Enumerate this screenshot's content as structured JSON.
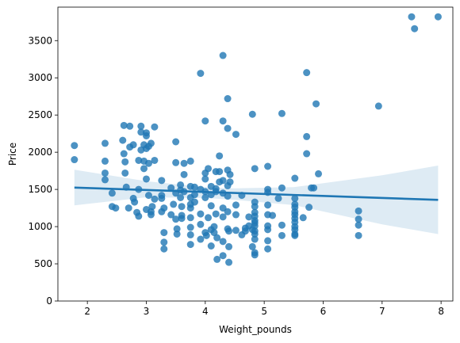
{
  "chart_data": {
    "type": "scatter",
    "title": "",
    "xlabel": "Weight_pounds",
    "ylabel": "Price",
    "xlim": [
      1.5,
      8.2
    ],
    "ylim": [
      0,
      3950
    ],
    "xticks": [
      2,
      3,
      4,
      5,
      6,
      7,
      8
    ],
    "yticks": [
      0,
      500,
      1000,
      1500,
      2000,
      2500,
      3000,
      3500
    ],
    "grid": false,
    "legend": "none",
    "colors": {
      "points": "#1f77b4",
      "line": "#1f77b4",
      "band": "#1f77b4"
    },
    "points": [
      [
        1.78,
        2090
      ],
      [
        1.78,
        1900
      ],
      [
        2.3,
        2120
      ],
      [
        2.3,
        1880
      ],
      [
        2.3,
        1720
      ],
      [
        2.3,
        1630
      ],
      [
        2.42,
        1450
      ],
      [
        2.42,
        1270
      ],
      [
        2.48,
        1250
      ],
      [
        2.6,
        2160
      ],
      [
        2.62,
        2360
      ],
      [
        2.62,
        1980
      ],
      [
        2.64,
        1720
      ],
      [
        2.64,
        1870
      ],
      [
        2.66,
        1530
      ],
      [
        2.7,
        1250
      ],
      [
        2.72,
        2070
      ],
      [
        2.72,
        2350
      ],
      [
        2.78,
        2100
      ],
      [
        2.78,
        1380
      ],
      [
        2.8,
        1330
      ],
      [
        2.84,
        1190
      ],
      [
        2.87,
        1140
      ],
      [
        2.87,
        1500
      ],
      [
        2.87,
        1890
      ],
      [
        2.91,
        2030
      ],
      [
        2.91,
        2350
      ],
      [
        2.91,
        2270
      ],
      [
        2.96,
        2100
      ],
      [
        2.96,
        1880
      ],
      [
        2.96,
        1780
      ],
      [
        3.0,
        2050
      ],
      [
        3.0,
        2260
      ],
      [
        3.0,
        2220
      ],
      [
        3.0,
        1640
      ],
      [
        3.0,
        1230
      ],
      [
        3.04,
        2080
      ],
      [
        3.04,
        1850
      ],
      [
        3.04,
        1420
      ],
      [
        3.08,
        2120
      ],
      [
        3.08,
        1200
      ],
      [
        3.08,
        1160
      ],
      [
        3.1,
        1270
      ],
      [
        3.14,
        2340
      ],
      [
        3.14,
        1890
      ],
      [
        3.14,
        1370
      ],
      [
        3.26,
        1620
      ],
      [
        3.26,
        1420
      ],
      [
        3.26,
        1380
      ],
      [
        3.26,
        1200
      ],
      [
        3.3,
        920
      ],
      [
        3.3,
        790
      ],
      [
        3.3,
        700
      ],
      [
        3.3,
        1250
      ],
      [
        3.42,
        1520
      ],
      [
        3.42,
        1160
      ],
      [
        3.46,
        1300
      ],
      [
        3.5,
        2140
      ],
      [
        3.5,
        1860
      ],
      [
        3.5,
        1450
      ],
      [
        3.5,
        1100
      ],
      [
        3.52,
        970
      ],
      [
        3.52,
        900
      ],
      [
        3.58,
        1560
      ],
      [
        3.58,
        1490
      ],
      [
        3.58,
        1390
      ],
      [
        3.6,
        1270
      ],
      [
        3.6,
        1150
      ],
      [
        3.6,
        1110
      ],
      [
        3.64,
        1700
      ],
      [
        3.64,
        1850
      ],
      [
        3.64,
        1470
      ],
      [
        3.75,
        1880
      ],
      [
        3.75,
        1540
      ],
      [
        3.75,
        1390
      ],
      [
        3.75,
        1300
      ],
      [
        3.75,
        1250
      ],
      [
        3.75,
        1120
      ],
      [
        3.75,
        990
      ],
      [
        3.75,
        890
      ],
      [
        3.75,
        760
      ],
      [
        3.82,
        1530
      ],
      [
        3.82,
        1430
      ],
      [
        3.82,
        1330
      ],
      [
        3.92,
        3060
      ],
      [
        3.92,
        1500
      ],
      [
        3.92,
        1170
      ],
      [
        3.92,
        1030
      ],
      [
        3.92,
        830
      ],
      [
        4.0,
        1720
      ],
      [
        4.0,
        1640
      ],
      [
        4.0,
        1470
      ],
      [
        4.0,
        1390
      ],
      [
        4.0,
        2420
      ],
      [
        4.0,
        920
      ],
      [
        4.02,
        880
      ],
      [
        4.05,
        1780
      ],
      [
        4.05,
        1120
      ],
      [
        4.1,
        1540
      ],
      [
        4.1,
        1430
      ],
      [
        4.1,
        1280
      ],
      [
        4.1,
        960
      ],
      [
        4.1,
        740
      ],
      [
        4.15,
        1000
      ],
      [
        4.15,
        920
      ],
      [
        4.18,
        1740
      ],
      [
        4.18,
        1510
      ],
      [
        4.18,
        1470
      ],
      [
        4.18,
        1170
      ],
      [
        4.2,
        560
      ],
      [
        4.2,
        850
      ],
      [
        4.24,
        1950
      ],
      [
        4.24,
        1740
      ],
      [
        4.24,
        1600
      ],
      [
        4.3,
        3300
      ],
      [
        4.3,
        2420
      ],
      [
        4.3,
        1620
      ],
      [
        4.3,
        1450
      ],
      [
        4.3,
        1250
      ],
      [
        4.3,
        1130
      ],
      [
        4.3,
        800
      ],
      [
        4.3,
        610
      ],
      [
        4.38,
        2720
      ],
      [
        4.38,
        2320
      ],
      [
        4.38,
        1760
      ],
      [
        4.38,
        1550
      ],
      [
        4.38,
        1410
      ],
      [
        4.38,
        1200
      ],
      [
        4.38,
        970
      ],
      [
        4.4,
        730
      ],
      [
        4.4,
        520
      ],
      [
        4.4,
        940
      ],
      [
        4.42,
        1600
      ],
      [
        4.42,
        1700
      ],
      [
        4.52,
        2240
      ],
      [
        4.52,
        1290
      ],
      [
        4.52,
        1160
      ],
      [
        4.52,
        950
      ],
      [
        4.62,
        1420
      ],
      [
        4.62,
        890
      ],
      [
        4.68,
        940
      ],
      [
        4.68,
        980
      ],
      [
        4.74,
        1130
      ],
      [
        4.74,
        1010
      ],
      [
        4.8,
        2510
      ],
      [
        4.8,
        960
      ],
      [
        4.8,
        730
      ],
      [
        4.84,
        1780
      ],
      [
        4.84,
        1330
      ],
      [
        4.84,
        1270
      ],
      [
        4.84,
        1190
      ],
      [
        4.84,
        1140
      ],
      [
        4.84,
        1080
      ],
      [
        4.84,
        1050
      ],
      [
        4.84,
        1010
      ],
      [
        4.84,
        940
      ],
      [
        4.84,
        900
      ],
      [
        4.84,
        830
      ],
      [
        4.84,
        650
      ],
      [
        4.84,
        620
      ],
      [
        5.06,
        1810
      ],
      [
        5.06,
        1500
      ],
      [
        5.06,
        1460
      ],
      [
        5.06,
        1290
      ],
      [
        5.06,
        1160
      ],
      [
        5.06,
        1010
      ],
      [
        5.06,
        960
      ],
      [
        5.06,
        810
      ],
      [
        5.06,
        700
      ],
      [
        5.14,
        1150
      ],
      [
        5.24,
        1380
      ],
      [
        5.3,
        2520
      ],
      [
        5.3,
        1520
      ],
      [
        5.3,
        1020
      ],
      [
        5.3,
        880
      ],
      [
        5.52,
        1650
      ],
      [
        5.52,
        1380
      ],
      [
        5.52,
        1300
      ],
      [
        5.52,
        1260
      ],
      [
        5.52,
        1200
      ],
      [
        5.52,
        1160
      ],
      [
        5.52,
        1110
      ],
      [
        5.52,
        1060
      ],
      [
        5.52,
        1000
      ],
      [
        5.52,
        960
      ],
      [
        5.52,
        900
      ],
      [
        5.52,
        880
      ],
      [
        5.66,
        1120
      ],
      [
        5.72,
        3070
      ],
      [
        5.72,
        2210
      ],
      [
        5.72,
        1980
      ],
      [
        5.76,
        1260
      ],
      [
        5.8,
        1520
      ],
      [
        5.84,
        1520
      ],
      [
        5.88,
        2650
      ],
      [
        5.92,
        1710
      ],
      [
        6.6,
        1210
      ],
      [
        6.6,
        1100
      ],
      [
        6.6,
        1020
      ],
      [
        6.6,
        880
      ],
      [
        6.94,
        2620
      ],
      [
        7.5,
        3820
      ],
      [
        7.55,
        3660
      ],
      [
        7.95,
        3820
      ]
    ],
    "regression": {
      "x": [
        1.78,
        7.95
      ],
      "y": [
        1525,
        1360
      ]
    },
    "confidence_band": {
      "x": [
        1.78,
        3.0,
        4.0,
        4.5,
        5.5,
        7.0,
        7.95
      ],
      "lower": [
        1285,
        1395,
        1385,
        1360,
        1290,
        1030,
        900
      ],
      "upper": [
        1765,
        1610,
        1530,
        1515,
        1530,
        1690,
        1820
      ]
    }
  }
}
